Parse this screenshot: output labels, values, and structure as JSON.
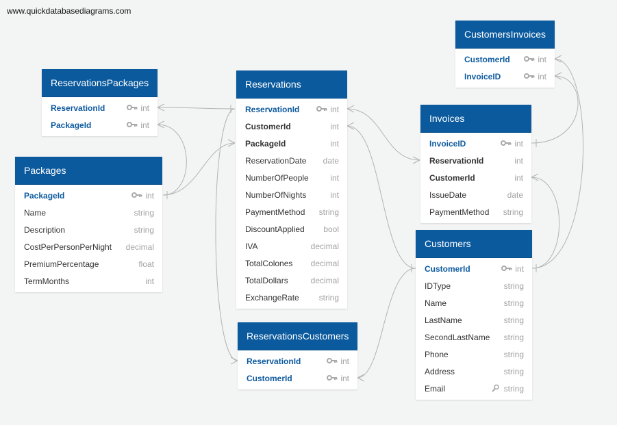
{
  "watermark": "www.quickdatabasediagrams.com",
  "tables": [
    {
      "id": "reservations-packages",
      "name": "ReservationsPackages",
      "fields": [
        {
          "name": "ReservationId",
          "type": "int",
          "role": "pk",
          "icon": "key-icon"
        },
        {
          "name": "PackageId",
          "type": "int",
          "role": "pk",
          "icon": "key-icon"
        }
      ]
    },
    {
      "id": "packages",
      "name": "Packages",
      "fields": [
        {
          "name": "PackageId",
          "type": "int",
          "role": "pk",
          "icon": "key-icon"
        },
        {
          "name": "Name",
          "type": "string",
          "role": "",
          "icon": ""
        },
        {
          "name": "Description",
          "type": "string",
          "role": "",
          "icon": ""
        },
        {
          "name": "CostPerPersonPerNight",
          "type": "decimal",
          "role": "",
          "icon": ""
        },
        {
          "name": "PremiumPercentage",
          "type": "float",
          "role": "",
          "icon": ""
        },
        {
          "name": "TermMonths",
          "type": "int",
          "role": "",
          "icon": ""
        }
      ]
    },
    {
      "id": "reservations",
      "name": "Reservations",
      "fields": [
        {
          "name": "ReservationId",
          "type": "int",
          "role": "pk",
          "icon": "key-icon"
        },
        {
          "name": "CustomerId",
          "type": "int",
          "role": "fk",
          "icon": ""
        },
        {
          "name": "PackageId",
          "type": "int",
          "role": "fk",
          "icon": ""
        },
        {
          "name": "ReservationDate",
          "type": "date",
          "role": "",
          "icon": ""
        },
        {
          "name": "NumberOfPeople",
          "type": "int",
          "role": "",
          "icon": ""
        },
        {
          "name": "NumberOfNights",
          "type": "int",
          "role": "",
          "icon": ""
        },
        {
          "name": "PaymentMethod",
          "type": "string",
          "role": "",
          "icon": ""
        },
        {
          "name": "DiscountApplied",
          "type": "bool",
          "role": "",
          "icon": ""
        },
        {
          "name": "IVA",
          "type": "decimal",
          "role": "",
          "icon": ""
        },
        {
          "name": "TotalColones",
          "type": "decimal",
          "role": "",
          "icon": ""
        },
        {
          "name": "TotalDollars",
          "type": "decimal",
          "role": "",
          "icon": ""
        },
        {
          "name": "ExchangeRate",
          "type": "string",
          "role": "",
          "icon": ""
        }
      ]
    },
    {
      "id": "reservations-customers",
      "name": "ReservationsCustomers",
      "fields": [
        {
          "name": "ReservationId",
          "type": "int",
          "role": "pk",
          "icon": "key-icon"
        },
        {
          "name": "CustomerId",
          "type": "int",
          "role": "pk",
          "icon": "key-icon"
        }
      ]
    },
    {
      "id": "customers-invoices",
      "name": "CustomersInvoices",
      "fields": [
        {
          "name": "CustomerId",
          "type": "int",
          "role": "pk",
          "icon": "key-icon"
        },
        {
          "name": "InvoiceID",
          "type": "int",
          "role": "pk",
          "icon": "key-icon"
        }
      ]
    },
    {
      "id": "invoices",
      "name": "Invoices",
      "fields": [
        {
          "name": "InvoiceID",
          "type": "int",
          "role": "pk",
          "icon": "key-icon"
        },
        {
          "name": "ReservationId",
          "type": "int",
          "role": "fk",
          "icon": ""
        },
        {
          "name": "CustomerId",
          "type": "int",
          "role": "fk",
          "icon": ""
        },
        {
          "name": "IssueDate",
          "type": "date",
          "role": "",
          "icon": ""
        },
        {
          "name": "PaymentMethod",
          "type": "string",
          "role": "",
          "icon": ""
        }
      ]
    },
    {
      "id": "customers",
      "name": "Customers",
      "fields": [
        {
          "name": "CustomerId",
          "type": "int",
          "role": "pk",
          "icon": "key-icon"
        },
        {
          "name": "IDType",
          "type": "string",
          "role": "",
          "icon": ""
        },
        {
          "name": "Name",
          "type": "string",
          "role": "",
          "icon": ""
        },
        {
          "name": "LastName",
          "type": "string",
          "role": "",
          "icon": ""
        },
        {
          "name": "SecondLastName",
          "type": "string",
          "role": "",
          "icon": ""
        },
        {
          "name": "Phone",
          "type": "string",
          "role": "",
          "icon": ""
        },
        {
          "name": "Address",
          "type": "string",
          "role": "",
          "icon": ""
        },
        {
          "name": "Email",
          "type": "string",
          "role": "",
          "icon": "search-icon"
        }
      ]
    }
  ],
  "colors": {
    "header": "#0b5a9e",
    "primary_key_text": "#0d5a9f",
    "type_text": "#a2a2a2",
    "relationship_line": "#b3b3b3",
    "background": "#f3f4f4"
  }
}
